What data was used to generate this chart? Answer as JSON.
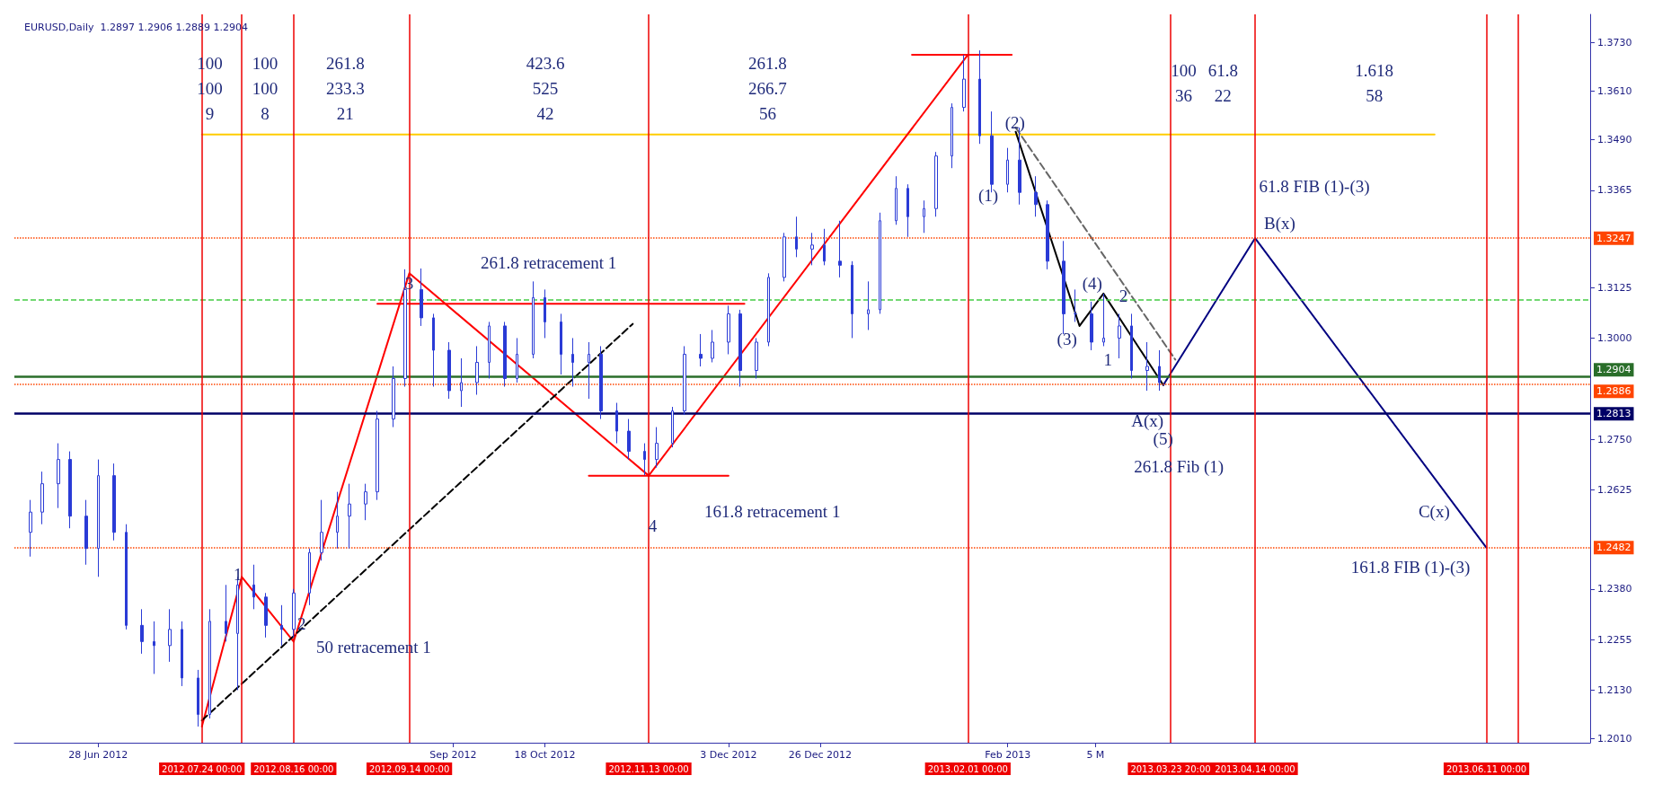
{
  "chart_data": {
    "type": "candlestick",
    "title": "EURUSD,Daily  1.2897 1.2906 1.2889 1.2904",
    "color": "#2a3bd6",
    "marker": "none",
    "x": [
      "2012-06-11",
      "2012-06-14",
      "2012-06-18",
      "2012-06-21",
      "2012-06-25",
      "2012-06-28",
      "2012-07-02",
      "2012-07-05",
      "2012-07-09",
      "2012-07-12",
      "2012-07-16",
      "2012-07-19",
      "2012-07-23",
      "2012-07-26",
      "2012-07-30",
      "2012-08-02",
      "2012-08-06",
      "2012-08-09",
      "2012-08-13",
      "2012-08-16",
      "2012-08-20",
      "2012-08-23",
      "2012-08-27",
      "2012-08-30",
      "2012-09-03",
      "2012-09-06",
      "2012-09-10",
      "2012-09-13",
      "2012-09-17",
      "2012-09-20",
      "2012-09-24",
      "2012-09-27",
      "2012-10-01",
      "2012-10-04",
      "2012-10-08",
      "2012-10-11",
      "2012-10-15",
      "2012-10-18",
      "2012-10-22",
      "2012-10-25",
      "2012-10-29",
      "2012-11-01",
      "2012-11-05",
      "2012-11-08",
      "2012-11-12",
      "2012-11-15",
      "2012-11-19",
      "2012-11-22",
      "2012-11-26",
      "2012-11-29",
      "2012-12-03",
      "2012-12-06",
      "2012-12-10",
      "2012-12-13",
      "2012-12-17",
      "2012-12-20",
      "2012-12-24",
      "2012-12-27",
      "2012-12-31",
      "2013-01-03",
      "2013-01-07",
      "2013-01-10",
      "2013-01-14",
      "2013-01-17",
      "2013-01-21",
      "2013-01-24",
      "2013-01-28",
      "2013-01-31",
      "2013-02-04",
      "2013-02-07",
      "2013-02-11",
      "2013-02-14",
      "2013-02-18",
      "2013-02-21",
      "2013-02-25",
      "2013-02-28",
      "2013-03-04",
      "2013-03-07",
      "2013-03-11",
      "2013-03-14",
      "2013-03-18",
      "2013-03-21"
    ],
    "ohlc": [
      [
        1.252,
        1.26,
        1.246,
        1.257
      ],
      [
        1.257,
        1.267,
        1.254,
        1.264
      ],
      [
        1.264,
        1.274,
        1.258,
        1.27
      ],
      [
        1.27,
        1.272,
        1.253,
        1.256
      ],
      [
        1.256,
        1.26,
        1.244,
        1.248
      ],
      [
        1.248,
        1.27,
        1.241,
        1.266
      ],
      [
        1.266,
        1.269,
        1.25,
        1.252
      ],
      [
        1.252,
        1.254,
        1.228,
        1.229
      ],
      [
        1.229,
        1.233,
        1.222,
        1.225
      ],
      [
        1.225,
        1.23,
        1.217,
        1.224
      ],
      [
        1.224,
        1.233,
        1.22,
        1.228
      ],
      [
        1.228,
        1.23,
        1.214,
        1.216
      ],
      [
        1.216,
        1.218,
        1.204,
        1.207
      ],
      [
        1.207,
        1.233,
        1.206,
        1.23
      ],
      [
        1.23,
        1.239,
        1.225,
        1.227
      ],
      [
        1.227,
        1.241,
        1.213,
        1.239
      ],
      [
        1.239,
        1.244,
        1.233,
        1.236
      ],
      [
        1.236,
        1.237,
        1.226,
        1.229
      ],
      [
        1.229,
        1.234,
        1.224,
        1.228
      ],
      [
        1.228,
        1.238,
        1.226,
        1.237
      ],
      [
        1.237,
        1.248,
        1.234,
        1.247
      ],
      [
        1.247,
        1.26,
        1.245,
        1.252
      ],
      [
        1.252,
        1.262,
        1.248,
        1.256
      ],
      [
        1.256,
        1.264,
        1.248,
        1.259
      ],
      [
        1.259,
        1.264,
        1.255,
        1.262
      ],
      [
        1.262,
        1.282,
        1.26,
        1.28
      ],
      [
        1.28,
        1.293,
        1.278,
        1.29
      ],
      [
        1.29,
        1.317,
        1.288,
        1.312
      ],
      [
        1.312,
        1.3172,
        1.303,
        1.305
      ],
      [
        1.305,
        1.306,
        1.288,
        1.297
      ],
      [
        1.297,
        1.299,
        1.285,
        1.287
      ],
      [
        1.287,
        1.295,
        1.283,
        1.289
      ],
      [
        1.289,
        1.298,
        1.286,
        1.294
      ],
      [
        1.294,
        1.304,
        1.29,
        1.303
      ],
      [
        1.303,
        1.304,
        1.288,
        1.29
      ],
      [
        1.29,
        1.3,
        1.289,
        1.296
      ],
      [
        1.296,
        1.314,
        1.295,
        1.31
      ],
      [
        1.31,
        1.312,
        1.3,
        1.304
      ],
      [
        1.304,
        1.306,
        1.291,
        1.296
      ],
      [
        1.296,
        1.3,
        1.288,
        1.294
      ],
      [
        1.294,
        1.299,
        1.285,
        1.296
      ],
      [
        1.296,
        1.298,
        1.28,
        1.282
      ],
      [
        1.282,
        1.284,
        1.274,
        1.277
      ],
      [
        1.277,
        1.28,
        1.27,
        1.272
      ],
      [
        1.272,
        1.274,
        1.2661,
        1.27
      ],
      [
        1.27,
        1.278,
        1.268,
        1.274
      ],
      [
        1.274,
        1.283,
        1.273,
        1.282
      ],
      [
        1.282,
        1.298,
        1.281,
        1.296
      ],
      [
        1.296,
        1.301,
        1.293,
        1.295
      ],
      [
        1.295,
        1.302,
        1.294,
        1.299
      ],
      [
        1.299,
        1.308,
        1.296,
        1.306
      ],
      [
        1.306,
        1.307,
        1.288,
        1.292
      ],
      [
        1.292,
        1.3,
        1.29,
        1.299
      ],
      [
        1.299,
        1.316,
        1.298,
        1.315
      ],
      [
        1.315,
        1.326,
        1.314,
        1.325
      ],
      [
        1.325,
        1.33,
        1.32,
        1.322
      ],
      [
        1.322,
        1.326,
        1.318,
        1.323
      ],
      [
        1.323,
        1.327,
        1.318,
        1.319
      ],
      [
        1.319,
        1.329,
        1.315,
        1.318
      ],
      [
        1.318,
        1.319,
        1.3,
        1.306
      ],
      [
        1.306,
        1.314,
        1.302,
        1.307
      ],
      [
        1.307,
        1.331,
        1.306,
        1.329
      ],
      [
        1.329,
        1.34,
        1.328,
        1.337
      ],
      [
        1.337,
        1.338,
        1.325,
        1.33
      ],
      [
        1.33,
        1.334,
        1.326,
        1.332
      ],
      [
        1.332,
        1.346,
        1.33,
        1.345
      ],
      [
        1.345,
        1.358,
        1.342,
        1.357
      ],
      [
        1.357,
        1.37,
        1.356,
        1.364
      ],
      [
        1.364,
        1.3711,
        1.348,
        1.35
      ],
      [
        1.35,
        1.356,
        1.336,
        1.338
      ],
      [
        1.338,
        1.347,
        1.336,
        1.344
      ],
      [
        1.344,
        1.352,
        1.333,
        1.336
      ],
      [
        1.336,
        1.34,
        1.33,
        1.333
      ],
      [
        1.333,
        1.334,
        1.317,
        1.319
      ],
      [
        1.319,
        1.324,
        1.301,
        1.306
      ],
      [
        1.306,
        1.312,
        1.304,
        1.306
      ],
      [
        1.306,
        1.309,
        1.297,
        1.299
      ],
      [
        1.299,
        1.311,
        1.298,
        1.3
      ],
      [
        1.3,
        1.306,
        1.295,
        1.303
      ],
      [
        1.303,
        1.306,
        1.29,
        1.292
      ],
      [
        1.292,
        1.299,
        1.287,
        1.293
      ],
      [
        1.293,
        1.297,
        1.287,
        1.289
      ]
    ],
    "series": [
      {
        "type": "line",
        "color": "#ffcc00",
        "line_style": "solid",
        "x": [
          "2012-07-24",
          "2013-05-29"
        ],
        "values": [
          1.3503,
          1.3503
        ]
      },
      {
        "type": "line",
        "color": "#ff0000",
        "line_style": "solid",
        "x": [
          "2012-07-24",
          "2012-08-03",
          "2012-08-16",
          "2012-09-14",
          "2012-11-13",
          "2013-02-01"
        ],
        "values": [
          1.204,
          1.241,
          1.225,
          1.316,
          1.266,
          1.37
        ]
      },
      {
        "type": "line",
        "color": "#ff0000",
        "line_style": "solid",
        "x": [
          "2013-01-18",
          "2013-02-12"
        ],
        "values": [
          1.37,
          1.37
        ]
      },
      {
        "type": "line",
        "color": "#ff0000",
        "line_style": "solid",
        "x": [
          "2012-09-06",
          "2012-12-07"
        ],
        "values": [
          1.3085,
          1.3085
        ]
      },
      {
        "type": "line",
        "color": "#ff0000",
        "line_style": "solid",
        "x": [
          "2012-10-29",
          "2012-12-03"
        ],
        "values": [
          1.266,
          1.266
        ]
      },
      {
        "type": "line",
        "color": "#000000",
        "line_style": "dashed",
        "x": [
          "2012-07-24",
          "2012-11-09"
        ],
        "values": [
          1.2055,
          1.3035
        ]
      },
      {
        "type": "line",
        "color": "#666666",
        "line_style": "dashed",
        "x": [
          "2013-02-13",
          "2013-03-25"
        ],
        "values": [
          1.352,
          1.2947
        ]
      },
      {
        "type": "line",
        "color": "#000000",
        "line_style": "solid",
        "x": [
          "2013-02-13",
          "2013-03-01",
          "2013-03-07",
          "2013-03-22"
        ],
        "values": [
          1.351,
          1.303,
          1.311,
          1.2884
        ]
      },
      {
        "type": "line",
        "color": "#000080",
        "line_style": "solid",
        "x": [
          "2013-03-22",
          "2013-04-14",
          "2013-06-11"
        ],
        "values": [
          1.2884,
          1.3247,
          1.2482
        ]
      }
    ],
    "xlim": [
      "2012-06-07",
      "2013-07-07"
    ],
    "xticks": [
      {
        "value": "2012-06-28",
        "label": "28 Jun 2012"
      },
      {
        "value": "2012-09-25",
        "label": "Sep 2012"
      },
      {
        "value": "2012-10-18",
        "label": "18 Oct 2012"
      },
      {
        "value": "2012-12-03",
        "label": "3 Dec 2012"
      },
      {
        "value": "2012-12-26",
        "label": "26 Dec 2012"
      },
      {
        "value": "2013-02-11",
        "label": "Feb 2013"
      },
      {
        "value": "2013-03-05",
        "label": "5 M"
      }
    ],
    "ylim": [
      1.2,
      1.38
    ],
    "yticks": [
      {
        "value": 1.373,
        "label": "1.3730"
      },
      {
        "value": 1.361,
        "label": "1.3610"
      },
      {
        "value": 1.349,
        "label": "1.3490"
      },
      1.3365,
      1.3125,
      {
        "value": 1.3,
        "label": "1.3000"
      },
      {
        "value": 1.275,
        "label": "1.2750"
      },
      1.2625,
      {
        "value": 1.238,
        "label": "1.2380"
      },
      1.2255,
      {
        "value": 1.213,
        "label": "1.2130"
      },
      {
        "value": 1.201,
        "label": "1.2010"
      }
    ],
    "ref_lines": [
      {
        "axis": "y",
        "value": 1.3247,
        "label": "1.3247",
        "color": "#ff4500",
        "line_style": "dotted"
      },
      {
        "axis": "y",
        "value": 1.3095,
        "label": null,
        "color": "#44cc44",
        "line_style": "dashed"
      },
      {
        "axis": "y",
        "value": 1.2904,
        "label": "1.2904",
        "color": "#2a6e2a",
        "line_style": "solid"
      },
      {
        "axis": "y",
        "value": 1.2886,
        "label": "1.2886",
        "color": "#ff4500",
        "line_style": "dotted"
      },
      {
        "axis": "y",
        "value": 1.2813,
        "label": "1.2813",
        "color": "#000066",
        "line_style": "solid"
      },
      {
        "axis": "y",
        "value": 1.2482,
        "label": "1.2482",
        "color": "#ff4500",
        "line_style": "dotted"
      },
      {
        "axis": "x",
        "value": "2012-07-24",
        "label": "2012.07.24 00:00",
        "color": "#ee0000",
        "line_style": "solid"
      },
      {
        "axis": "x",
        "value": "2012-08-03",
        "label": null,
        "color": "#ee0000",
        "line_style": "solid"
      },
      {
        "axis": "x",
        "value": "2012-08-16",
        "label": "2012.08.16 00:00",
        "color": "#ee0000",
        "line_style": "solid"
      },
      {
        "axis": "x",
        "value": "2012-09-14",
        "label": "2012.09.14 00:00",
        "color": "#ee0000",
        "line_style": "solid"
      },
      {
        "axis": "x",
        "value": "2012-11-13",
        "label": "2012.11.13 00:00",
        "color": "#ee0000",
        "line_style": "solid"
      },
      {
        "axis": "x",
        "value": "2013-02-01",
        "label": "2013.02.01 00:00",
        "color": "#ee0000",
        "line_style": "solid"
      },
      {
        "axis": "x",
        "value": "2013-03-23T20:00",
        "label": "2013.03.23 20:00",
        "color": "#ee0000",
        "line_style": "solid"
      },
      {
        "axis": "x",
        "value": "2013-04-14",
        "label": "2013.04.14 00:00",
        "color": "#ee0000",
        "line_style": "solid"
      },
      {
        "axis": "x",
        "value": "2013-06-11",
        "label": "2013.06.11 00:00",
        "color": "#ee0000",
        "line_style": "solid"
      },
      {
        "axis": "x",
        "value": "2013-06-19",
        "label": null,
        "color": "#ee0000",
        "line_style": "solid"
      }
    ],
    "annotations": [
      "100\n100\n9",
      "100\n100\n8",
      "261.8\n233.3\n21",
      "423.6\n525\n42",
      "261.8\n266.7\n56",
      "100\n36",
      "61.8\n22",
      "1.618\n58",
      {
        "text": "1",
        "x": "2012-08-02",
        "y": 1.2417
      },
      {
        "text": "2",
        "x": "2012-08-18",
        "y": 1.2295
      },
      {
        "text": "3",
        "x": "2012-09-14",
        "y": 1.3136
      },
      {
        "text": "4",
        "x": "2012-11-14",
        "y": 1.2535
      },
      "50 retracement 1",
      "261.8 retracement 1",
      "161.8 retracement 1",
      "(1)",
      "(2)",
      "(3)",
      "(4)",
      "(5)",
      {
        "text": "2",
        "x": "2013-03-12",
        "y": 1.3104
      },
      "1",
      "A(x)",
      "261.8 Fib (1)",
      "B(x)",
      "61.8 FIB (1)-(3)",
      "C(x)",
      "161.8 FIB (1)-(3)"
    ]
  }
}
